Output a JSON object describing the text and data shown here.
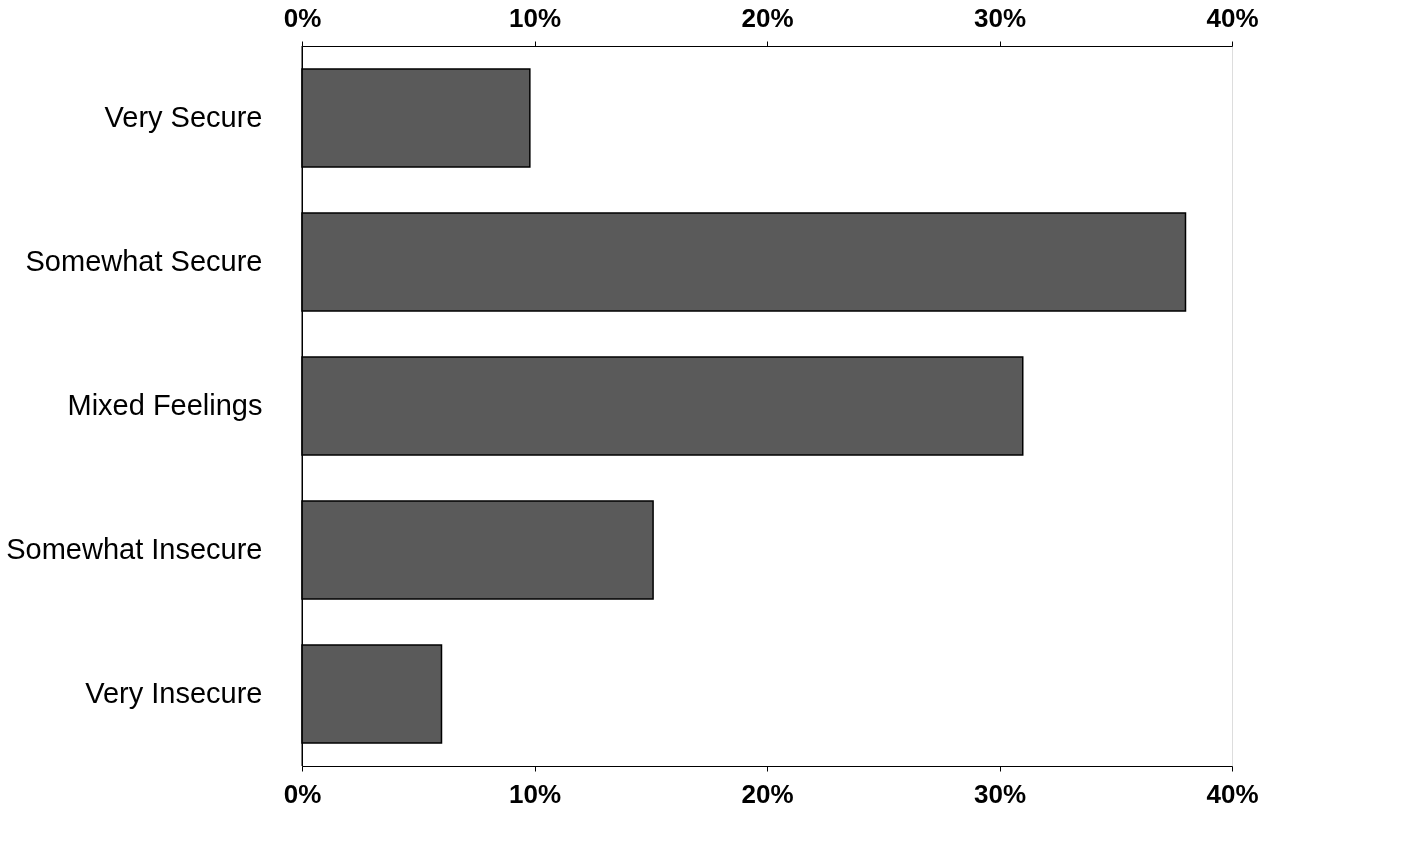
{
  "chart_data": {
    "type": "bar",
    "orientation": "horizontal",
    "categories": [
      "Very Secure",
      "Somewhat Secure",
      "Mixed Feelings",
      "Somewhat Insecure",
      "Very Insecure"
    ],
    "values": [
      9.8,
      38,
      31,
      15.1,
      6
    ],
    "color": "#5a5a5a",
    "xlim": [
      0,
      40
    ],
    "xticks": [
      {
        "value": 0,
        "label": "0%"
      },
      {
        "value": 10,
        "label": "10%"
      },
      {
        "value": 20,
        "label": "20%"
      },
      {
        "value": 30,
        "label": "30%"
      },
      {
        "value": 40,
        "label": "40%"
      }
    ],
    "x2lim": [
      0,
      40
    ],
    "x2ticks": [
      {
        "value": 0,
        "label": "0%"
      },
      {
        "value": 10,
        "label": "10%"
      },
      {
        "value": 20,
        "label": "20%"
      },
      {
        "value": 30,
        "label": "30%"
      },
      {
        "value": 40,
        "label": "40%"
      }
    ],
    "grid": false
  }
}
